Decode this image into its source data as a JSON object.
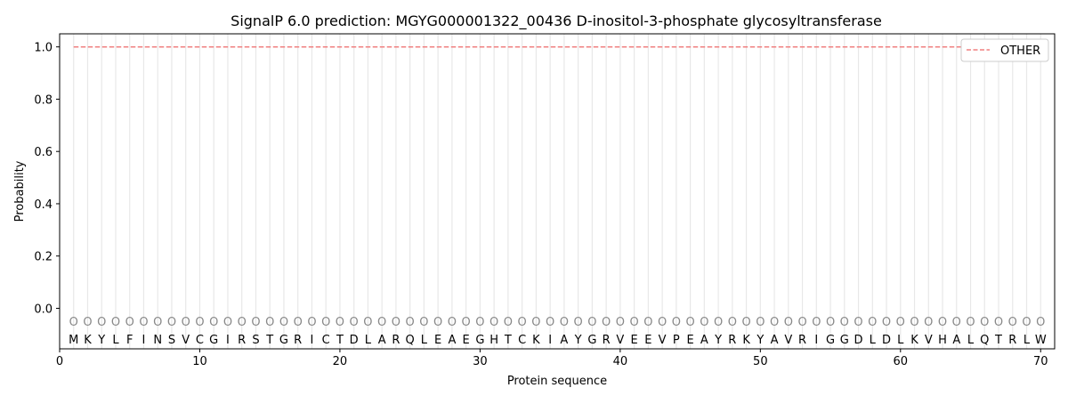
{
  "chart_data": {
    "type": "line",
    "title": "SignalP 6.0 prediction: MGYG000001322_00436 D-inositol-3-phosphate glycosyltransferase",
    "xlabel": "Protein sequence",
    "ylabel": "Probability",
    "xlim": [
      0,
      71
    ],
    "ylim": [
      -0.155,
      1.05
    ],
    "xticks": [
      0,
      10,
      20,
      30,
      40,
      50,
      60,
      70
    ],
    "yticks": [
      0.0,
      0.2,
      0.4,
      0.6,
      0.8,
      1.0
    ],
    "ytick_labels": [
      "0.0",
      "0.2",
      "0.4",
      "0.6",
      "0.8",
      "1.0"
    ],
    "grid": "vertical lines at each residue",
    "legend_placement": "top-right",
    "sequence": "MKYLFINSVCGIRSTGRICTDLARQLEAEGHTCKIAYGRVEEVPEAYRKYAVRIGGDLDLKVHALQTRLW",
    "region_label": "O",
    "series": [
      {
        "name": "OTHER",
        "color": "#f08080",
        "style": "dashed",
        "x_start": 1,
        "x_end": 70,
        "value": 1.0
      }
    ]
  }
}
